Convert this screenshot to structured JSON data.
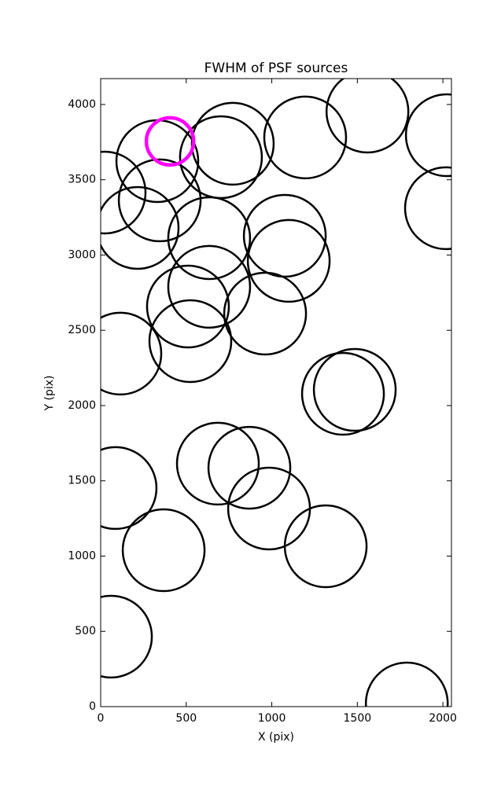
{
  "chart_data": {
    "type": "scatter",
    "title": "FWHM of PSF sources",
    "x_label": "X (pix)",
    "y_label": "Y (pix)",
    "xlim": [
      0,
      2050
    ],
    "ylim": [
      0,
      4172
    ],
    "xticks": [
      0,
      500,
      1000,
      1500,
      2000
    ],
    "yticks": [
      0,
      500,
      1000,
      1500,
      2000,
      2500,
      3000,
      3500,
      4000
    ],
    "series": [
      {
        "color": "#000000",
        "x": [
          23,
          331,
          345,
          216,
          703,
          772,
          1195,
          1559,
          2023,
          2018,
          634,
          1076,
          1099,
          634,
          510,
          961,
          524,
          115,
          1416,
          1485,
          685,
          869,
          984,
          1315,
          87,
          368,
          60,
          1789
        ],
        "values": [
          3415,
          3624,
          3363,
          3180,
          3650,
          3739,
          3781,
          3953,
          3796,
          3311,
          3112,
          3128,
          2961,
          2789,
          2658,
          2611,
          2428,
          2345,
          2078,
          2104,
          1614,
          1587,
          1316,
          1065,
          1452,
          1039,
          465,
          21
        ]
      },
      {
        "color": "#ff00ff",
        "x": [
          405
        ],
        "values": [
          3755
        ]
      }
    ]
  }
}
